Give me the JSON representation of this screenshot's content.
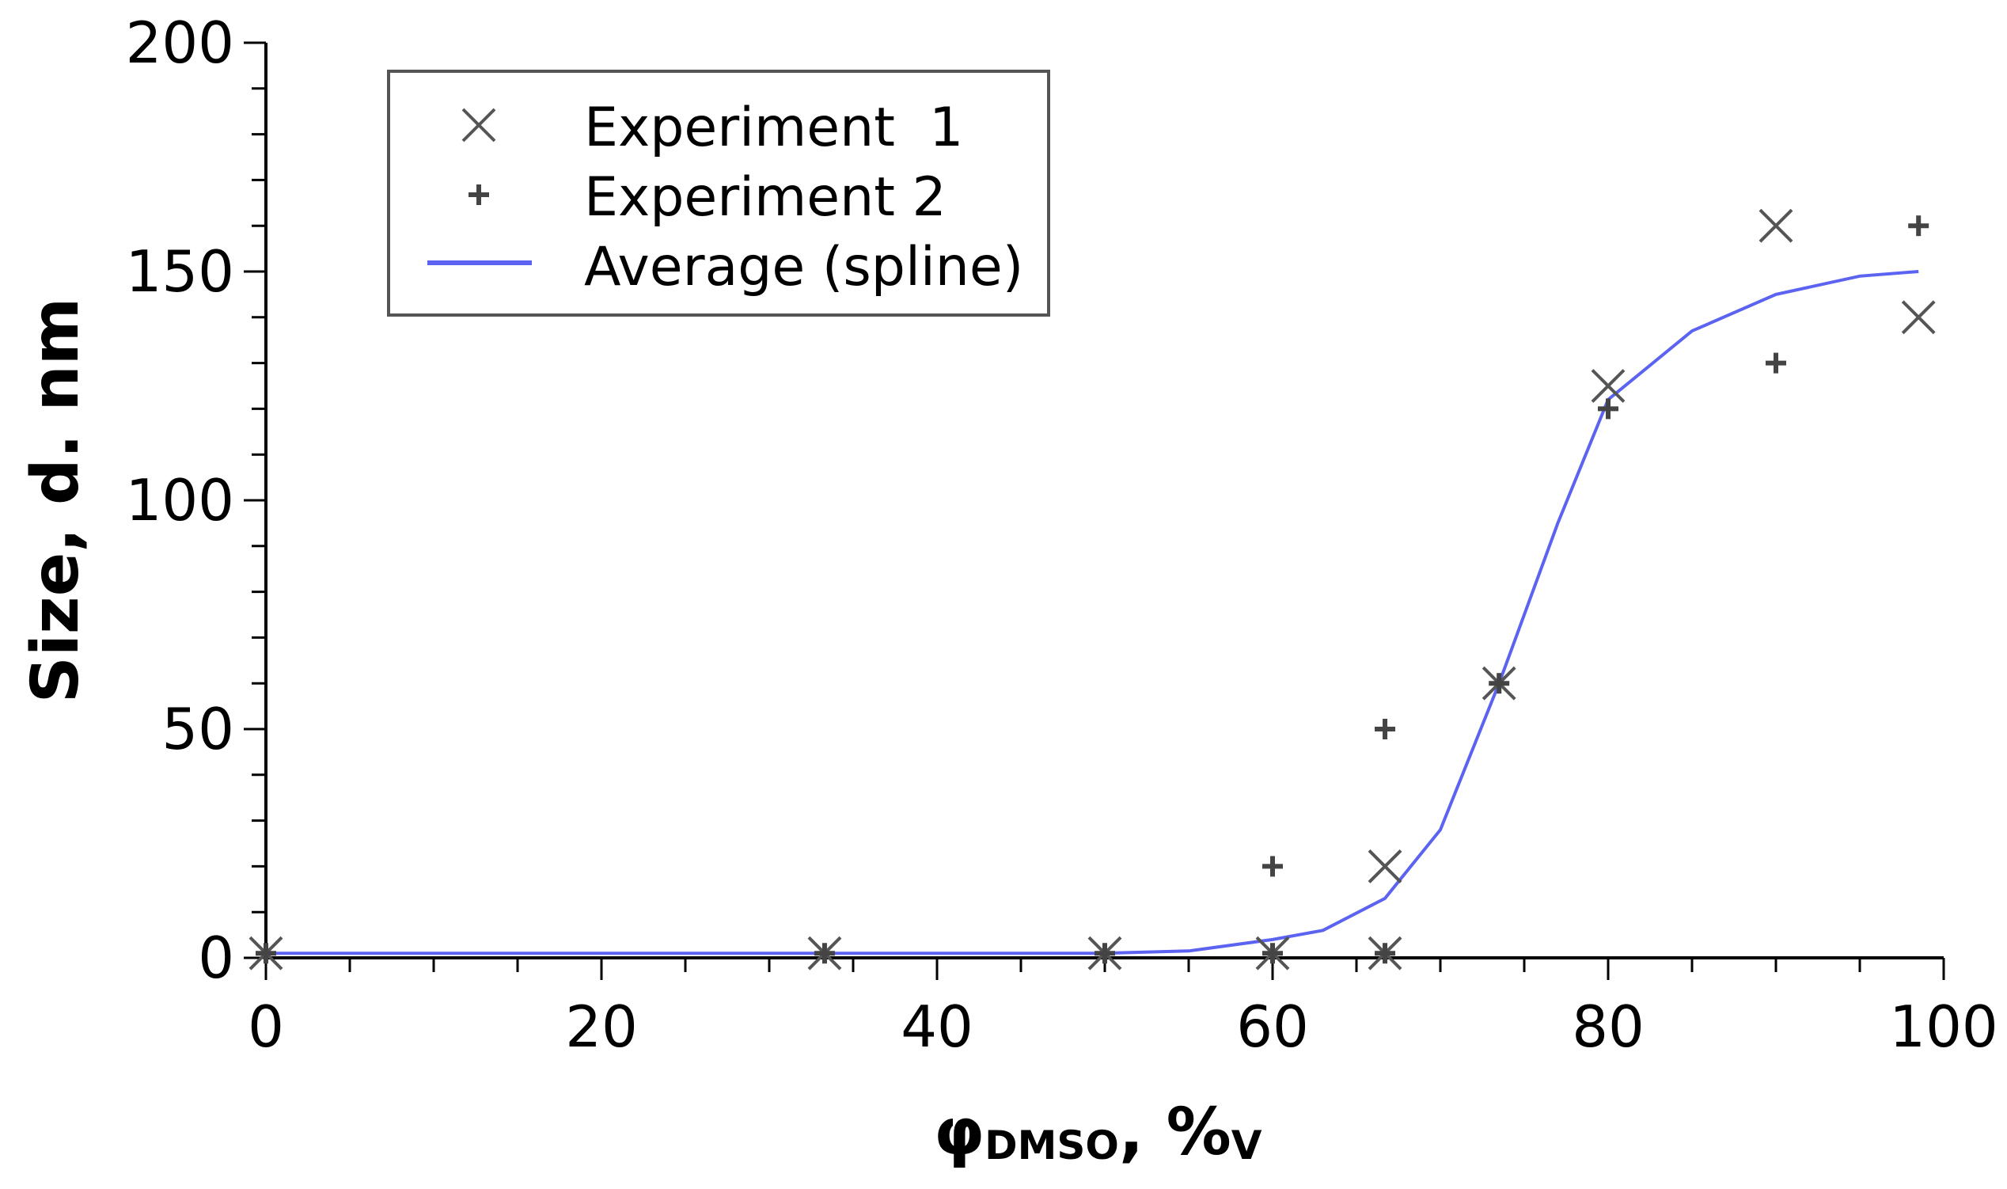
{
  "chart_data": {
    "type": "scatter",
    "title": "",
    "xlabel": "φ",
    "xlabel_subscript": "DMSO",
    "xlabel_suffix": ", %",
    "xlabel_suffix_subscript": "V",
    "ylabel": "Size, d. nm",
    "xlim": [
      0,
      100
    ],
    "ylim": [
      0,
      200
    ],
    "x_ticks": [
      "0",
      "20",
      "40",
      "60",
      "80",
      "100"
    ],
    "y_ticks": [
      "0",
      "50",
      "100",
      "150",
      "200"
    ],
    "grid": false,
    "legend_position": "top-left",
    "colors": {
      "markers": "#555555",
      "spline": "#5b63f0",
      "axes": "#000000"
    },
    "series": [
      {
        "name": "Experiment  1",
        "marker": "x",
        "x": [
          0,
          33.3,
          50,
          60,
          66.7,
          66.7,
          73.5,
          80,
          90,
          98.5
        ],
        "y": [
          1,
          1,
          1,
          1,
          20,
          1,
          60,
          125,
          160,
          140
        ]
      },
      {
        "name": "Experiment 2",
        "marker": "+",
        "x": [
          0,
          33.3,
          50,
          60,
          60,
          66.7,
          66.7,
          73.5,
          80,
          90,
          98.5
        ],
        "y": [
          1,
          1,
          1,
          1,
          20,
          50,
          1,
          60,
          120,
          130,
          160
        ]
      },
      {
        "name": "Average (spline)",
        "marker": "line",
        "x": [
          0,
          10,
          20,
          30,
          40,
          50,
          55,
          60,
          63,
          66.7,
          70,
          73.5,
          77,
          80,
          85,
          90,
          95,
          98.5
        ],
        "y": [
          1,
          1,
          1,
          1,
          1,
          1,
          1.5,
          4,
          6,
          13,
          28,
          60,
          95,
          122,
          137,
          145,
          149,
          150
        ]
      }
    ]
  }
}
